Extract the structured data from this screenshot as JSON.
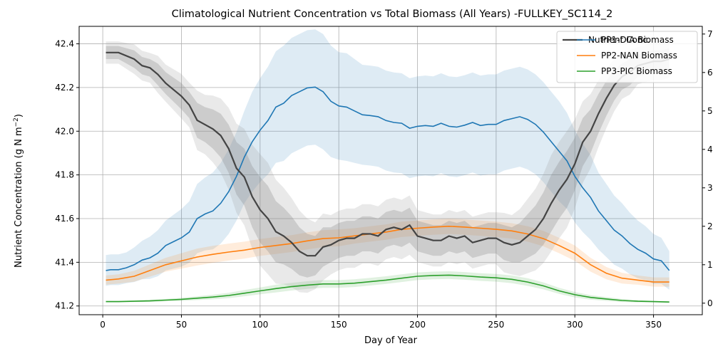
{
  "chart_data": {
    "type": "line",
    "title": "Climatological Nutrient Concentration vs Total Biomass (All Years) -FULLKEY_SC114_2",
    "xlabel": "Day of Year",
    "ylabel_left": "Nutrient Concentration (g N m",
    "ylabel_left_sup": "−2",
    "ylabel_left_close": ")",
    "xlim": [
      -15,
      381
    ],
    "ylim_left": [
      41.16,
      42.48
    ],
    "ylim_right": [
      -0.3,
      7.2
    ],
    "x_ticks": [
      0,
      50,
      100,
      150,
      200,
      250,
      300,
      350
    ],
    "y_ticks_left": [
      41.2,
      41.4,
      41.6,
      41.8,
      42.0,
      42.2,
      42.4
    ],
    "y_ticks_right": [
      0,
      1,
      2,
      3,
      4,
      5,
      6,
      7
    ],
    "grid": true,
    "legend_position": "top-right",
    "legend_hidden_entry": "Nutrient Conc.",
    "nutrient": {
      "name": "Nutrient Conc.",
      "color": "#444444",
      "x": [
        2,
        10,
        20,
        25,
        30,
        35,
        40,
        50,
        55,
        60,
        65,
        70,
        75,
        80,
        85,
        90,
        95,
        100,
        105,
        110,
        115,
        120,
        125,
        130,
        135,
        140,
        145,
        150,
        155,
        160,
        165,
        170,
        175,
        180,
        185,
        190,
        195,
        200,
        205,
        210,
        215,
        220,
        225,
        230,
        235,
        240,
        245,
        250,
        255,
        260,
        265,
        270,
        275,
        280,
        285,
        290,
        295,
        300,
        305,
        310,
        315,
        320,
        325,
        330,
        335,
        340,
        345,
        350,
        355,
        360
      ],
      "y": [
        42.36,
        42.36,
        42.33,
        42.3,
        42.29,
        42.26,
        42.22,
        42.16,
        42.12,
        42.05,
        42.03,
        42.01,
        41.98,
        41.92,
        41.83,
        41.79,
        41.7,
        41.64,
        41.6,
        41.54,
        41.52,
        41.49,
        41.45,
        41.43,
        41.43,
        41.47,
        41.48,
        41.5,
        41.51,
        41.51,
        41.53,
        41.53,
        41.52,
        41.55,
        41.56,
        41.55,
        41.57,
        41.52,
        41.51,
        41.5,
        41.5,
        41.52,
        41.51,
        41.52,
        41.49,
        41.5,
        41.51,
        41.51,
        41.49,
        41.48,
        41.49,
        41.52,
        41.55,
        41.6,
        41.67,
        41.73,
        41.78,
        41.85,
        41.95,
        42.0,
        42.08,
        42.15,
        42.21,
        42.25,
        42.27,
        42.3,
        42.31,
        42.32,
        42.32,
        42.33
      ],
      "band": [
        0.03,
        0.03,
        0.04,
        0.04,
        0.04,
        0.05,
        0.05,
        0.06,
        0.06,
        0.08,
        0.08,
        0.09,
        0.1,
        0.11,
        0.12,
        0.13,
        0.14,
        0.15,
        0.15,
        0.14,
        0.13,
        0.12,
        0.11,
        0.1,
        0.09,
        0.09,
        0.08,
        0.08,
        0.08,
        0.08,
        0.08,
        0.08,
        0.08,
        0.08,
        0.08,
        0.08,
        0.08,
        0.07,
        0.07,
        0.07,
        0.07,
        0.07,
        0.07,
        0.07,
        0.07,
        0.07,
        0.07,
        0.07,
        0.08,
        0.08,
        0.09,
        0.1,
        0.11,
        0.12,
        0.13,
        0.13,
        0.13,
        0.12,
        0.11,
        0.1,
        0.09,
        0.08,
        0.07,
        0.06,
        0.06,
        0.05,
        0.05,
        0.05,
        0.05,
        0.05
      ]
    },
    "series": [
      {
        "name": "PP1-DIA Biomass",
        "color": "#1f77b4",
        "x": [
          2,
          5,
          10,
          15,
          20,
          25,
          30,
          35,
          40,
          45,
          50,
          55,
          60,
          65,
          70,
          75,
          80,
          85,
          90,
          95,
          100,
          105,
          110,
          115,
          120,
          125,
          130,
          135,
          140,
          145,
          150,
          155,
          160,
          165,
          170,
          175,
          180,
          185,
          190,
          195,
          200,
          205,
          210,
          215,
          220,
          225,
          230,
          235,
          240,
          245,
          250,
          255,
          260,
          265,
          270,
          275,
          280,
          285,
          290,
          295,
          300,
          305,
          310,
          315,
          320,
          325,
          330,
          335,
          340,
          345,
          350,
          355,
          360
        ],
        "y": [
          0.85,
          0.87,
          0.87,
          0.92,
          1.0,
          1.12,
          1.18,
          1.3,
          1.5,
          1.6,
          1.7,
          1.85,
          2.2,
          2.32,
          2.4,
          2.6,
          2.9,
          3.3,
          3.8,
          4.2,
          4.5,
          4.75,
          5.1,
          5.2,
          5.4,
          5.5,
          5.6,
          5.62,
          5.5,
          5.25,
          5.13,
          5.1,
          5.0,
          4.9,
          4.88,
          4.85,
          4.75,
          4.7,
          4.68,
          4.55,
          4.6,
          4.62,
          4.6,
          4.68,
          4.6,
          4.58,
          4.63,
          4.7,
          4.62,
          4.65,
          4.65,
          4.75,
          4.8,
          4.85,
          4.78,
          4.65,
          4.45,
          4.2,
          3.95,
          3.7,
          3.3,
          3.0,
          2.75,
          2.4,
          2.15,
          1.9,
          1.75,
          1.55,
          1.4,
          1.3,
          1.15,
          1.1,
          0.85
        ],
        "band": [
          0.4,
          0.4,
          0.4,
          0.4,
          0.45,
          0.5,
          0.55,
          0.6,
          0.65,
          0.7,
          0.75,
          0.8,
          0.9,
          0.95,
          1.0,
          1.05,
          1.1,
          1.15,
          1.2,
          1.3,
          1.35,
          1.4,
          1.45,
          1.5,
          1.5,
          1.5,
          1.5,
          1.5,
          1.5,
          1.45,
          1.4,
          1.4,
          1.35,
          1.3,
          1.3,
          1.3,
          1.3,
          1.3,
          1.3,
          1.3,
          1.3,
          1.3,
          1.3,
          1.3,
          1.3,
          1.3,
          1.3,
          1.3,
          1.3,
          1.3,
          1.3,
          1.3,
          1.3,
          1.3,
          1.3,
          1.3,
          1.3,
          1.3,
          1.3,
          1.25,
          1.2,
          1.15,
          1.1,
          1.0,
          0.95,
          0.9,
          0.85,
          0.8,
          0.75,
          0.7,
          0.65,
          0.6,
          0.5
        ]
      },
      {
        "name": "PP2-NAN Biomass",
        "color": "#ff7f0e",
        "x": [
          2,
          10,
          20,
          30,
          40,
          50,
          60,
          70,
          80,
          90,
          100,
          110,
          120,
          130,
          140,
          150,
          160,
          170,
          180,
          190,
          200,
          210,
          220,
          230,
          240,
          250,
          260,
          270,
          280,
          290,
          300,
          310,
          320,
          330,
          340,
          350,
          360
        ],
        "y": [
          0.6,
          0.63,
          0.7,
          0.85,
          1.0,
          1.1,
          1.2,
          1.27,
          1.33,
          1.38,
          1.45,
          1.5,
          1.55,
          1.62,
          1.68,
          1.7,
          1.75,
          1.8,
          1.85,
          1.92,
          1.95,
          1.98,
          2.0,
          1.98,
          1.95,
          1.92,
          1.88,
          1.8,
          1.68,
          1.5,
          1.3,
          1.0,
          0.78,
          0.65,
          0.6,
          0.55,
          0.55
        ],
        "band": [
          0.12,
          0.12,
          0.14,
          0.16,
          0.18,
          0.2,
          0.22,
          0.22,
          0.22,
          0.22,
          0.22,
          0.22,
          0.22,
          0.22,
          0.22,
          0.22,
          0.2,
          0.2,
          0.2,
          0.2,
          0.2,
          0.2,
          0.2,
          0.2,
          0.2,
          0.2,
          0.2,
          0.2,
          0.2,
          0.2,
          0.2,
          0.18,
          0.16,
          0.14,
          0.12,
          0.12,
          0.12
        ]
      },
      {
        "name": "PP3-PIC Biomass",
        "color": "#2ca02c",
        "x": [
          2,
          10,
          20,
          30,
          40,
          50,
          60,
          70,
          80,
          90,
          100,
          110,
          120,
          130,
          140,
          150,
          160,
          170,
          180,
          190,
          200,
          210,
          220,
          230,
          240,
          250,
          260,
          270,
          280,
          290,
          300,
          310,
          320,
          330,
          340,
          350,
          360
        ],
        "y": [
          0.04,
          0.04,
          0.05,
          0.06,
          0.08,
          0.1,
          0.13,
          0.16,
          0.2,
          0.26,
          0.32,
          0.38,
          0.43,
          0.47,
          0.5,
          0.5,
          0.52,
          0.56,
          0.6,
          0.65,
          0.7,
          0.72,
          0.73,
          0.71,
          0.68,
          0.66,
          0.62,
          0.55,
          0.45,
          0.32,
          0.22,
          0.15,
          0.11,
          0.07,
          0.05,
          0.04,
          0.03
        ],
        "band": [
          0.02,
          0.02,
          0.02,
          0.03,
          0.03,
          0.04,
          0.05,
          0.06,
          0.07,
          0.08,
          0.09,
          0.1,
          0.1,
          0.1,
          0.1,
          0.1,
          0.1,
          0.1,
          0.1,
          0.1,
          0.1,
          0.1,
          0.1,
          0.1,
          0.1,
          0.1,
          0.1,
          0.1,
          0.09,
          0.08,
          0.07,
          0.06,
          0.05,
          0.04,
          0.03,
          0.02,
          0.02
        ]
      }
    ]
  }
}
